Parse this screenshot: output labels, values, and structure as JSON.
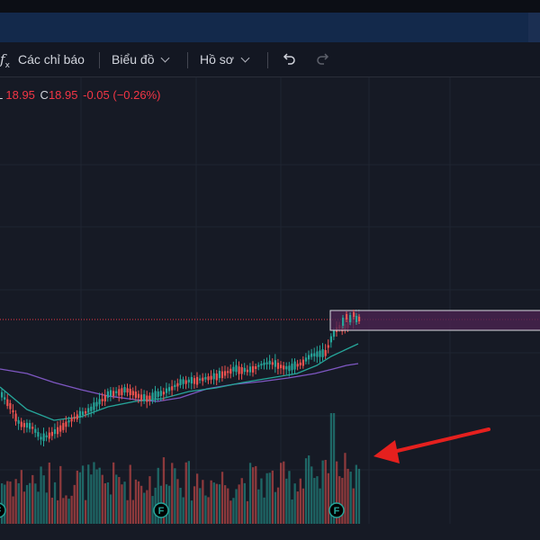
{
  "toolbar": {
    "indicators_icon": "fx-icon",
    "indicators_label": "Các chỉ báo",
    "chart_label": "Biểu đồ",
    "profile_label": "Hồ sơ",
    "undo_icon": "undo-icon",
    "redo_icon": "redo-icon"
  },
  "legend": {
    "l_label": "L",
    "l_value": "18.95",
    "c_label": "C",
    "c_value": "18.95",
    "change": "-0.05",
    "change_pct": "(−0.26%)"
  },
  "colors": {
    "background": "#161a25",
    "up": "#26a69a",
    "down": "#ef5350",
    "ma_fast": "#26a69a",
    "ma_slow": "#7e57c2",
    "box_fill": "#4a2350",
    "arrow": "#e5201e"
  },
  "markers": [
    {
      "label": "F"
    },
    {
      "label": "F"
    },
    {
      "label": "F"
    }
  ]
}
